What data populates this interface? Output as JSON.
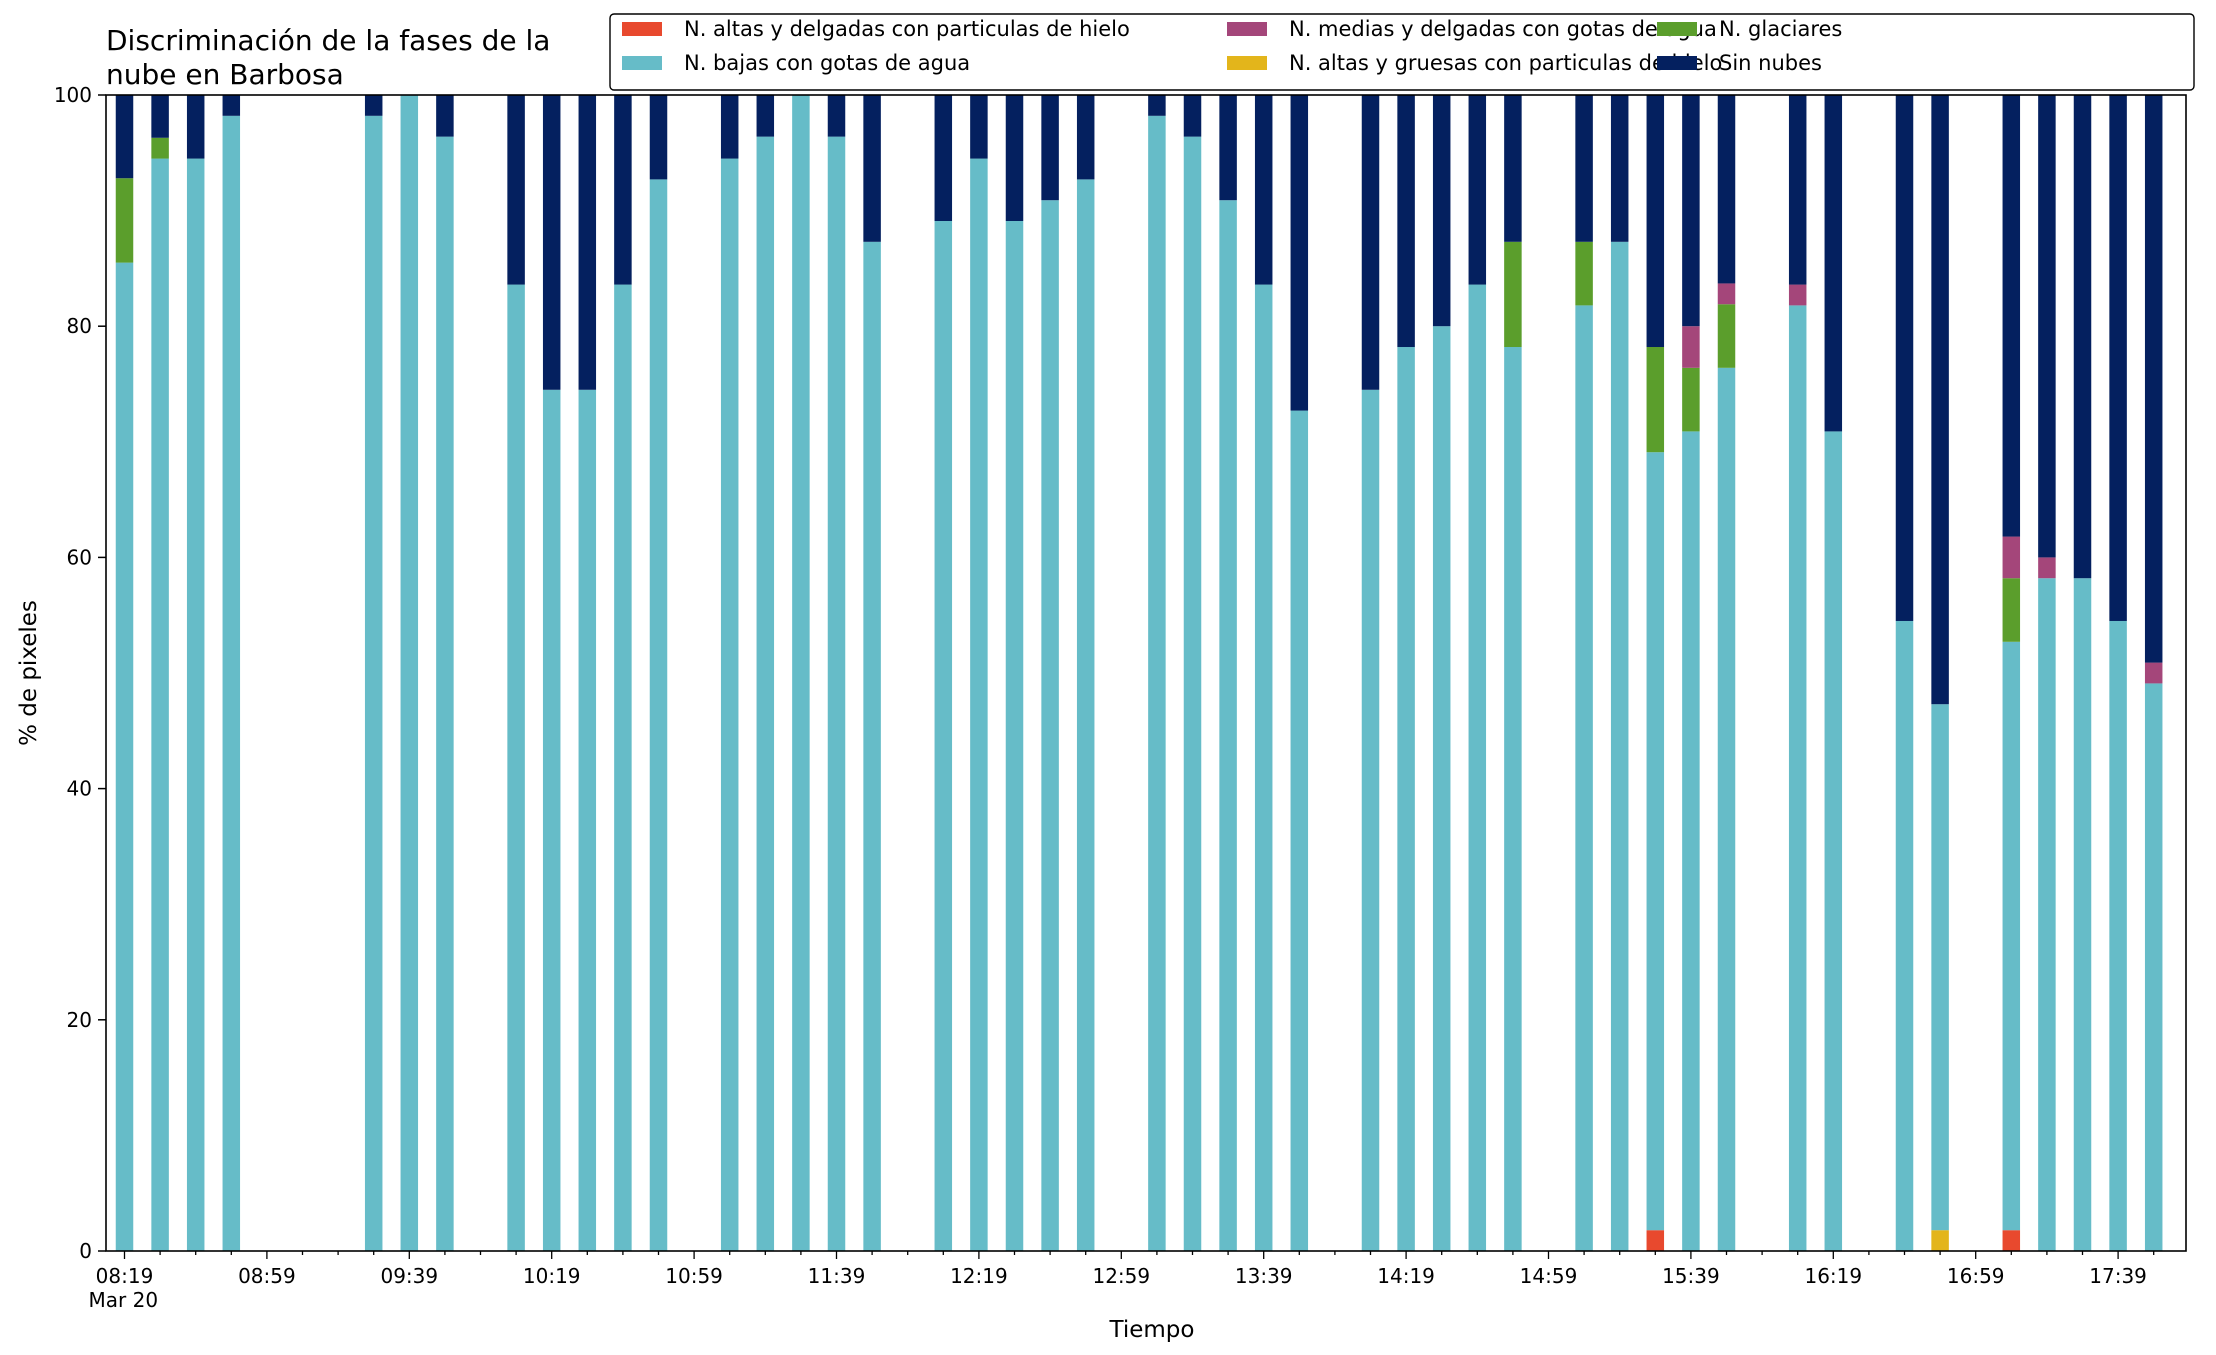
{
  "chart_data": {
    "type": "bar",
    "stacked": true,
    "title_lines": [
      "Discriminación de la fases de la",
      "nube en Barbosa"
    ],
    "xlabel": "Tiempo",
    "ylabel": "% de pixeles",
    "ylim": [
      0,
      100
    ],
    "yticks": [
      0,
      20,
      40,
      60,
      80,
      100
    ],
    "x_start_minutes": 499,
    "x_step_minutes": 10,
    "x_slots": 58,
    "xtick_labels": [
      "08:19",
      "08:59",
      "09:39",
      "10:19",
      "10:59",
      "11:39",
      "12:19",
      "12:59",
      "13:39",
      "14:19",
      "14:59",
      "15:39",
      "16:19",
      "16:59",
      "17:39"
    ],
    "xtick_sublabel": "Mar 20",
    "legend_position": "top-right",
    "series": [
      {
        "name": "N. altas y delgadas con particulas de hielo",
        "color": "#e8492e"
      },
      {
        "name": "N. altas y gruesas con particulas de hielo",
        "color": "#e3b51b"
      },
      {
        "name": "N. bajas con gotas de agua",
        "color": "#66bcc8"
      },
      {
        "name": "N. glaciares",
        "color": "#5b9e2c"
      },
      {
        "name": "N. medias y delgadas con gotas de agua",
        "color": "#a4467a"
      },
      {
        "name": "Sin nubes",
        "color": "#04205f"
      }
    ],
    "legend_order": [
      0,
      2,
      4,
      1,
      3,
      5
    ],
    "bars": [
      {
        "slot": 0,
        "values": [
          0,
          0,
          85.5,
          7.3,
          0,
          7.2
        ]
      },
      {
        "slot": 1,
        "values": [
          0,
          0,
          94.5,
          1.8,
          0,
          3.7
        ]
      },
      {
        "slot": 2,
        "values": [
          0,
          0,
          94.5,
          0,
          0,
          5.5
        ]
      },
      {
        "slot": 3,
        "values": [
          0,
          0,
          98.2,
          0,
          0,
          1.8
        ]
      },
      {
        "slot": 7,
        "values": [
          0,
          0,
          98.2,
          0,
          0,
          1.8
        ]
      },
      {
        "slot": 8,
        "values": [
          0,
          0,
          100,
          0,
          0,
          0
        ]
      },
      {
        "slot": 9,
        "values": [
          0,
          0,
          96.4,
          0,
          0,
          3.6
        ]
      },
      {
        "slot": 11,
        "values": [
          0,
          0,
          83.6,
          0,
          0,
          16.4
        ]
      },
      {
        "slot": 12,
        "values": [
          0,
          0,
          74.5,
          0,
          0,
          25.5
        ]
      },
      {
        "slot": 13,
        "values": [
          0,
          0,
          74.5,
          0,
          0,
          25.5
        ]
      },
      {
        "slot": 14,
        "values": [
          0,
          0,
          83.6,
          0,
          0,
          16.4
        ]
      },
      {
        "slot": 15,
        "values": [
          0,
          0,
          92.7,
          0,
          0,
          7.3
        ]
      },
      {
        "slot": 17,
        "values": [
          0,
          0,
          94.5,
          0,
          0,
          5.5
        ]
      },
      {
        "slot": 18,
        "values": [
          0,
          0,
          96.4,
          0,
          0,
          3.6
        ]
      },
      {
        "slot": 19,
        "values": [
          0,
          0,
          100,
          0,
          0,
          0
        ]
      },
      {
        "slot": 20,
        "values": [
          0,
          0,
          96.4,
          0,
          0,
          3.6
        ]
      },
      {
        "slot": 21,
        "values": [
          0,
          0,
          87.3,
          0,
          0,
          12.7
        ]
      },
      {
        "slot": 23,
        "values": [
          0,
          0,
          89.1,
          0,
          0,
          10.9
        ]
      },
      {
        "slot": 24,
        "values": [
          0,
          0,
          94.5,
          0,
          0,
          5.5
        ]
      },
      {
        "slot": 25,
        "values": [
          0,
          0,
          89.1,
          0,
          0,
          10.9
        ]
      },
      {
        "slot": 26,
        "values": [
          0,
          0,
          90.9,
          0,
          0,
          9.1
        ]
      },
      {
        "slot": 27,
        "values": [
          0,
          0,
          92.7,
          0,
          0,
          7.3
        ]
      },
      {
        "slot": 29,
        "values": [
          0,
          0,
          98.2,
          0,
          0,
          1.8
        ]
      },
      {
        "slot": 30,
        "values": [
          0,
          0,
          96.4,
          0,
          0,
          3.6
        ]
      },
      {
        "slot": 31,
        "values": [
          0,
          0,
          90.9,
          0,
          0,
          9.1
        ]
      },
      {
        "slot": 32,
        "values": [
          0,
          0,
          83.6,
          0,
          0,
          16.4
        ]
      },
      {
        "slot": 33,
        "values": [
          0,
          0,
          72.7,
          0,
          0,
          27.3
        ]
      },
      {
        "slot": 35,
        "values": [
          0,
          0,
          74.5,
          0,
          0,
          25.5
        ]
      },
      {
        "slot": 36,
        "values": [
          0,
          0,
          78.2,
          0,
          0,
          21.8
        ]
      },
      {
        "slot": 37,
        "values": [
          0,
          0,
          80.0,
          0,
          0,
          20.0
        ]
      },
      {
        "slot": 38,
        "values": [
          0,
          0,
          83.6,
          0,
          0,
          16.4
        ]
      },
      {
        "slot": 39,
        "values": [
          0,
          0,
          78.2,
          9.1,
          0,
          12.7
        ]
      },
      {
        "slot": 41,
        "values": [
          0,
          0,
          81.8,
          5.5,
          0,
          12.7
        ]
      },
      {
        "slot": 42,
        "values": [
          0,
          0,
          87.3,
          0,
          0,
          12.7
        ]
      },
      {
        "slot": 43,
        "values": [
          1.8,
          0,
          67.3,
          9.1,
          0,
          21.8
        ]
      },
      {
        "slot": 44,
        "values": [
          0,
          0,
          70.9,
          5.5,
          3.6,
          20.0
        ]
      },
      {
        "slot": 45,
        "values": [
          0,
          0,
          76.4,
          5.5,
          1.8,
          16.3
        ]
      },
      {
        "slot": 47,
        "values": [
          0,
          0,
          81.8,
          0,
          1.8,
          16.4
        ]
      },
      {
        "slot": 48,
        "values": [
          0,
          0,
          70.9,
          0,
          0,
          29.1
        ]
      },
      {
        "slot": 50,
        "values": [
          0,
          0,
          54.5,
          0,
          0,
          45.5
        ]
      },
      {
        "slot": 51,
        "values": [
          0,
          1.8,
          45.5,
          0,
          0,
          52.7
        ]
      },
      {
        "slot": 53,
        "values": [
          1.8,
          0,
          50.9,
          5.5,
          3.6,
          38.2
        ]
      },
      {
        "slot": 54,
        "values": [
          0,
          0,
          58.2,
          0,
          1.8,
          40.0
        ]
      },
      {
        "slot": 55,
        "values": [
          0,
          0,
          58.2,
          0,
          0,
          41.8
        ]
      },
      {
        "slot": 56,
        "values": [
          0,
          0,
          54.5,
          0,
          0,
          45.5
        ]
      },
      {
        "slot": 57,
        "values": [
          0,
          0,
          49.1,
          0,
          1.8,
          49.1
        ]
      }
    ]
  }
}
